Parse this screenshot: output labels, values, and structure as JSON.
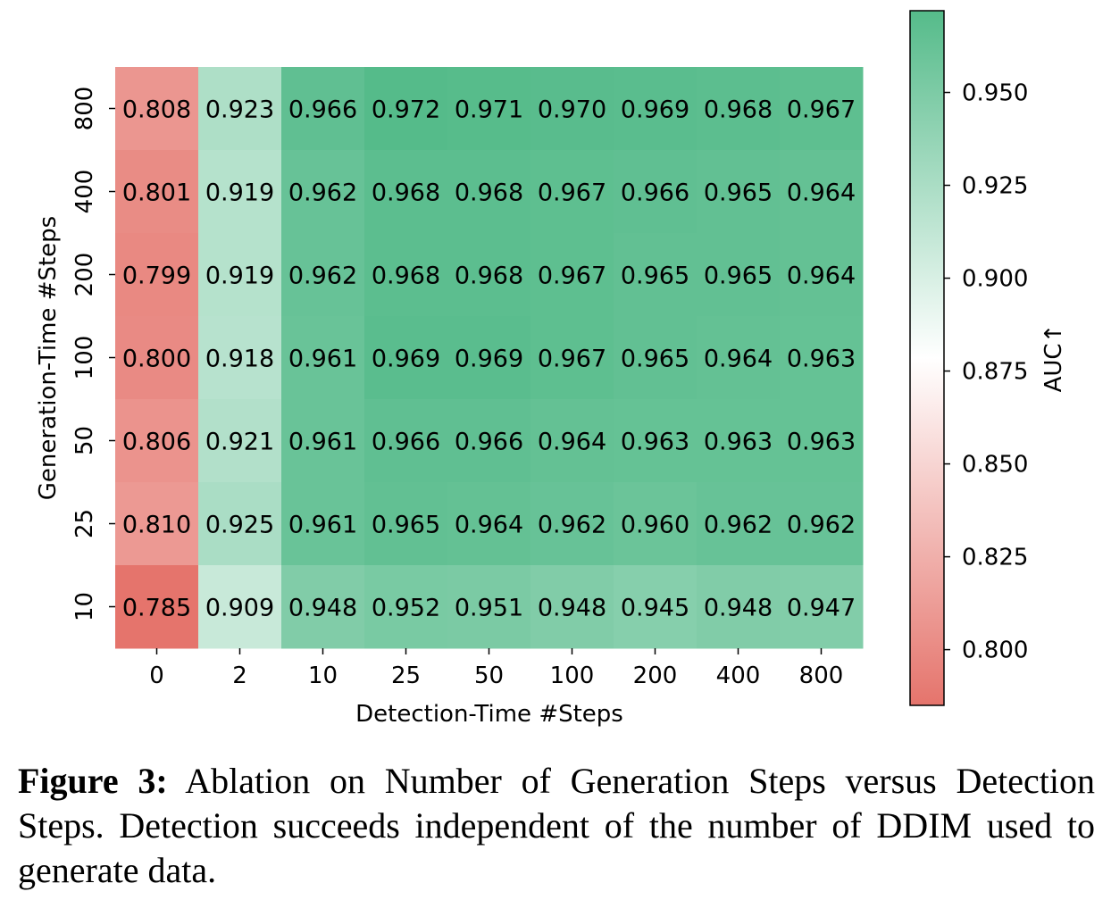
{
  "chart_data": {
    "type": "heatmap",
    "xlabel": "Detection-Time #Steps",
    "ylabel": "Generation-Time #Steps",
    "x_categories": [
      "0",
      "2",
      "10",
      "25",
      "50",
      "100",
      "200",
      "400",
      "800"
    ],
    "y_categories": [
      "800",
      "400",
      "200",
      "100",
      "50",
      "25",
      "10"
    ],
    "values": [
      [
        0.808,
        0.923,
        0.966,
        0.972,
        0.971,
        0.97,
        0.969,
        0.968,
        0.967
      ],
      [
        0.801,
        0.919,
        0.962,
        0.968,
        0.968,
        0.967,
        0.966,
        0.965,
        0.964
      ],
      [
        0.799,
        0.919,
        0.962,
        0.968,
        0.968,
        0.967,
        0.965,
        0.965,
        0.964
      ],
      [
        0.8,
        0.918,
        0.961,
        0.969,
        0.969,
        0.967,
        0.965,
        0.964,
        0.963
      ],
      [
        0.806,
        0.921,
        0.961,
        0.966,
        0.966,
        0.964,
        0.963,
        0.963,
        0.963
      ],
      [
        0.81,
        0.925,
        0.961,
        0.965,
        0.964,
        0.962,
        0.96,
        0.962,
        0.962
      ],
      [
        0.785,
        0.909,
        0.948,
        0.952,
        0.951,
        0.948,
        0.945,
        0.948,
        0.947
      ]
    ],
    "colorbar": {
      "label": "AUC↑",
      "range": [
        0.785,
        0.972
      ],
      "ticks": [
        "0.800",
        "0.825",
        "0.850",
        "0.875",
        "0.900",
        "0.925",
        "0.950"
      ],
      "colors": {
        "low": "#e5746c",
        "mid": "#ffffff",
        "high": "#55bb8a"
      }
    }
  },
  "caption": {
    "label": "Figure 3:",
    "text": "Ablation on Number of Generation Steps versus Detection Steps. Detection succeeds independent of the number of DDIM used to generate data."
  }
}
